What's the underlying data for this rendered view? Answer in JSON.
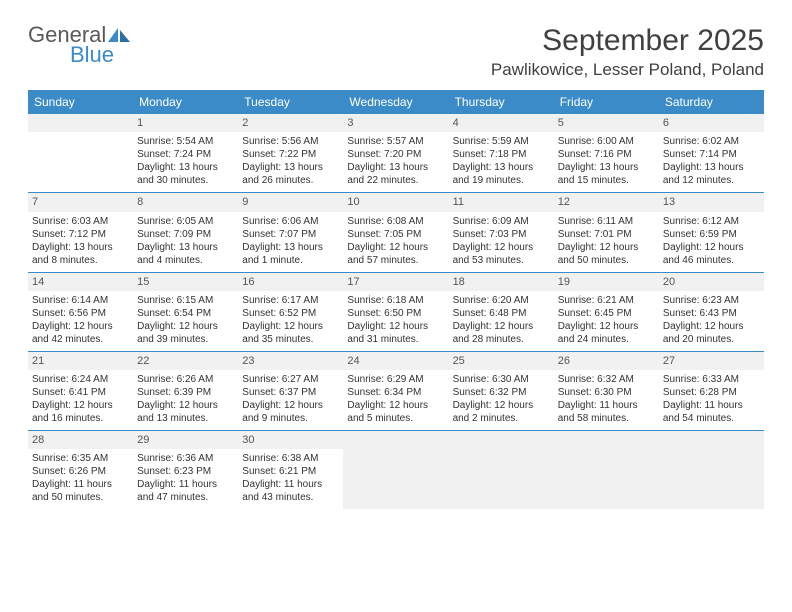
{
  "logo": {
    "word1": "General",
    "word2": "Blue"
  },
  "title": "September 2025",
  "location": "Pawlikowice, Lesser Poland, Poland",
  "colors": {
    "header_bg": "#3b8bc9",
    "header_text": "#ffffff",
    "daynum_bg": "#f1f1f1",
    "empty_bg": "#f1f1f1",
    "border": "#3b8bc9",
    "body_text": "#333333",
    "title_text": "#404040"
  },
  "weekdays": [
    "Sunday",
    "Monday",
    "Tuesday",
    "Wednesday",
    "Thursday",
    "Friday",
    "Saturday"
  ],
  "weeks": [
    [
      {
        "empty": true
      },
      {
        "n": "1",
        "sunrise": "5:54 AM",
        "sunset": "7:24 PM",
        "daylight": "13 hours and 30 minutes."
      },
      {
        "n": "2",
        "sunrise": "5:56 AM",
        "sunset": "7:22 PM",
        "daylight": "13 hours and 26 minutes."
      },
      {
        "n": "3",
        "sunrise": "5:57 AM",
        "sunset": "7:20 PM",
        "daylight": "13 hours and 22 minutes."
      },
      {
        "n": "4",
        "sunrise": "5:59 AM",
        "sunset": "7:18 PM",
        "daylight": "13 hours and 19 minutes."
      },
      {
        "n": "5",
        "sunrise": "6:00 AM",
        "sunset": "7:16 PM",
        "daylight": "13 hours and 15 minutes."
      },
      {
        "n": "6",
        "sunrise": "6:02 AM",
        "sunset": "7:14 PM",
        "daylight": "13 hours and 12 minutes."
      }
    ],
    [
      {
        "n": "7",
        "sunrise": "6:03 AM",
        "sunset": "7:12 PM",
        "daylight": "13 hours and 8 minutes."
      },
      {
        "n": "8",
        "sunrise": "6:05 AM",
        "sunset": "7:09 PM",
        "daylight": "13 hours and 4 minutes."
      },
      {
        "n": "9",
        "sunrise": "6:06 AM",
        "sunset": "7:07 PM",
        "daylight": "13 hours and 1 minute."
      },
      {
        "n": "10",
        "sunrise": "6:08 AM",
        "sunset": "7:05 PM",
        "daylight": "12 hours and 57 minutes."
      },
      {
        "n": "11",
        "sunrise": "6:09 AM",
        "sunset": "7:03 PM",
        "daylight": "12 hours and 53 minutes."
      },
      {
        "n": "12",
        "sunrise": "6:11 AM",
        "sunset": "7:01 PM",
        "daylight": "12 hours and 50 minutes."
      },
      {
        "n": "13",
        "sunrise": "6:12 AM",
        "sunset": "6:59 PM",
        "daylight": "12 hours and 46 minutes."
      }
    ],
    [
      {
        "n": "14",
        "sunrise": "6:14 AM",
        "sunset": "6:56 PM",
        "daylight": "12 hours and 42 minutes."
      },
      {
        "n": "15",
        "sunrise": "6:15 AM",
        "sunset": "6:54 PM",
        "daylight": "12 hours and 39 minutes."
      },
      {
        "n": "16",
        "sunrise": "6:17 AM",
        "sunset": "6:52 PM",
        "daylight": "12 hours and 35 minutes."
      },
      {
        "n": "17",
        "sunrise": "6:18 AM",
        "sunset": "6:50 PM",
        "daylight": "12 hours and 31 minutes."
      },
      {
        "n": "18",
        "sunrise": "6:20 AM",
        "sunset": "6:48 PM",
        "daylight": "12 hours and 28 minutes."
      },
      {
        "n": "19",
        "sunrise": "6:21 AM",
        "sunset": "6:45 PM",
        "daylight": "12 hours and 24 minutes."
      },
      {
        "n": "20",
        "sunrise": "6:23 AM",
        "sunset": "6:43 PM",
        "daylight": "12 hours and 20 minutes."
      }
    ],
    [
      {
        "n": "21",
        "sunrise": "6:24 AM",
        "sunset": "6:41 PM",
        "daylight": "12 hours and 16 minutes."
      },
      {
        "n": "22",
        "sunrise": "6:26 AM",
        "sunset": "6:39 PM",
        "daylight": "12 hours and 13 minutes."
      },
      {
        "n": "23",
        "sunrise": "6:27 AM",
        "sunset": "6:37 PM",
        "daylight": "12 hours and 9 minutes."
      },
      {
        "n": "24",
        "sunrise": "6:29 AM",
        "sunset": "6:34 PM",
        "daylight": "12 hours and 5 minutes."
      },
      {
        "n": "25",
        "sunrise": "6:30 AM",
        "sunset": "6:32 PM",
        "daylight": "12 hours and 2 minutes."
      },
      {
        "n": "26",
        "sunrise": "6:32 AM",
        "sunset": "6:30 PM",
        "daylight": "11 hours and 58 minutes."
      },
      {
        "n": "27",
        "sunrise": "6:33 AM",
        "sunset": "6:28 PM",
        "daylight": "11 hours and 54 minutes."
      }
    ],
    [
      {
        "n": "28",
        "sunrise": "6:35 AM",
        "sunset": "6:26 PM",
        "daylight": "11 hours and 50 minutes."
      },
      {
        "n": "29",
        "sunrise": "6:36 AM",
        "sunset": "6:23 PM",
        "daylight": "11 hours and 47 minutes."
      },
      {
        "n": "30",
        "sunrise": "6:38 AM",
        "sunset": "6:21 PM",
        "daylight": "11 hours and 43 minutes."
      },
      {
        "empty": true,
        "trailing": true
      },
      {
        "empty": true,
        "trailing": true
      },
      {
        "empty": true,
        "trailing": true
      },
      {
        "empty": true,
        "trailing": true
      }
    ]
  ],
  "labels": {
    "sunrise": "Sunrise:",
    "sunset": "Sunset:",
    "daylight": "Daylight:"
  }
}
